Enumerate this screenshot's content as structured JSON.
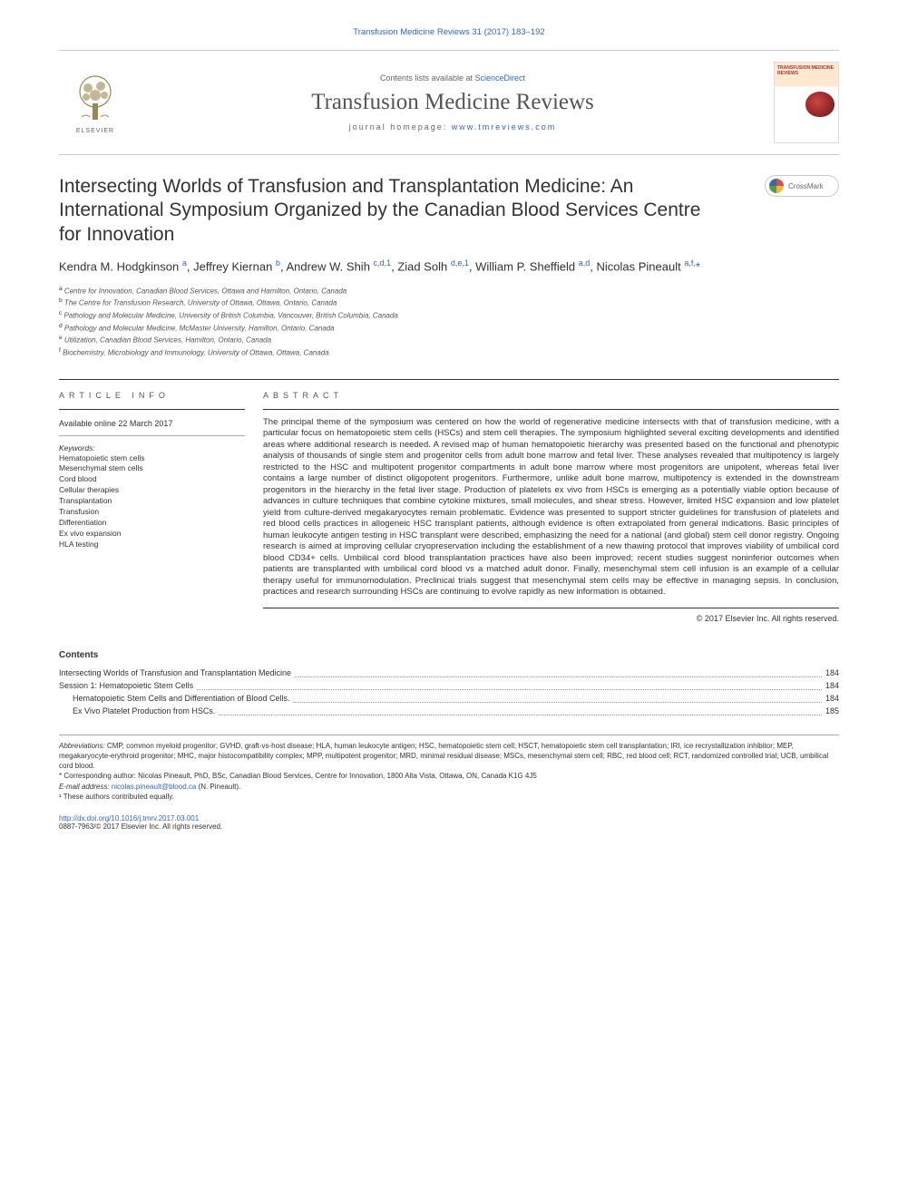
{
  "header": {
    "citation": "Transfusion Medicine Reviews 31 (2017) 183–192",
    "sciencedirect_line_prefix": "Contents lists available at ",
    "sciencedirect_link": "ScienceDirect",
    "journal_name": "Transfusion Medicine Reviews",
    "homepage_prefix": "journal homepage: ",
    "homepage_url": "www.tmreviews.com",
    "publisher_name": "ELSEVIER",
    "cover_label": "TRANSFUSION MEDICINE REVIEWS"
  },
  "crossmark": {
    "label": "CrossMark"
  },
  "article": {
    "title": "Intersecting Worlds of Transfusion and Transplantation Medicine: An International Symposium Organized by the Canadian Blood Services Centre for Innovation",
    "authors_html": "Kendra M. Hodgkinson <sup>a</sup>, Jeffrey Kiernan <sup>b</sup>, Andrew W. Shih <sup>c,d,1</sup>, Ziad Solh <sup>d,e,1</sup>, William P. Sheffield <sup>a,d</sup>, Nicolas Pineault <sup>a,f,</sup><span class='asterisk'>*</span>",
    "affiliations": [
      {
        "sup": "a",
        "text": "Centre for Innovation, Canadian Blood Services, Ottawa and Hamilton, Ontario, Canada"
      },
      {
        "sup": "b",
        "text": "The Centre for Transfusion Research, University of Ottawa, Ottawa, Ontario, Canada"
      },
      {
        "sup": "c",
        "text": "Pathology and Molecular Medicine, University of British Columbia, Vancouver, British Columbia, Canada"
      },
      {
        "sup": "d",
        "text": "Pathology and Molecular Medicine, McMaster University, Hamilton, Ontario, Canada"
      },
      {
        "sup": "e",
        "text": "Utilization, Canadian Blood Services, Hamilton, Ontario, Canada"
      },
      {
        "sup": "f",
        "text": "Biochemistry, Microbiology and Immunology, University of Ottawa, Ottawa, Canada"
      }
    ]
  },
  "article_info": {
    "heading": "article info",
    "online_date": "Available online 22 March 2017",
    "keywords_label": "Keywords:",
    "keywords": [
      "Hematopoietic stem cells",
      "Mesenchymal stem cells",
      "Cord blood",
      "Cellular therapies",
      "Transplantation",
      "Transfusion",
      "Differentiation",
      "Ex vivo expansion",
      "HLA testing"
    ]
  },
  "abstract": {
    "heading": "abstract",
    "text": "The principal theme of the symposium was centered on how the world of regenerative medicine intersects with that of transfusion medicine, with a particular focus on hematopoietic stem cells (HSCs) and stem cell therapies. The symposium highlighted several exciting developments and identified areas where additional research is needed. A revised map of human hematopoietic hierarchy was presented based on the functional and phenotypic analysis of thousands of single stem and progenitor cells from adult bone marrow and fetal liver. These analyses revealed that multipotency is largely restricted to the HSC and multipotent progenitor compartments in adult bone marrow where most progenitors are unipotent, whereas fetal liver contains a large number of distinct oligopotent progenitors. Furthermore, unlike adult bone marrow, multipotency is extended in the downstream progenitors in the hierarchy in the fetal liver stage. Production of platelets ex vivo from HSCs is emerging as a potentially viable option because of advances in culture techniques that combine cytokine mixtures, small molecules, and shear stress. However, limited HSC expansion and low platelet yield from culture-derived megakaryocytes remain problematic. Evidence was presented to support stricter guidelines for transfusion of platelets and red blood cells practices in allogeneic HSC transplant patients, although evidence is often extrapolated from general indications. Basic principles of human leukocyte antigen testing in HSC transplant were described, emphasizing the need for a national (and global) stem cell donor registry. Ongoing research is aimed at improving cellular cryopreservation including the establishment of a new thawing protocol that improves viability of umbilical cord blood CD34+ cells. Umbilical cord blood transplantation practices have also been improved; recent studies suggest noninferior outcomes when patients are transplanted with umbilical cord blood vs a matched adult donor. Finally, mesenchymal stem cell infusion is an example of a cellular therapy useful for immunomodulation. Preclinical trials suggest that mesenchymal stem cells may be effective in managing sepsis. In conclusion, practices and research surrounding HSCs are continuing to evolve rapidly as new information is obtained.",
    "copyright": "© 2017 Elsevier Inc. All rights reserved."
  },
  "contents": {
    "heading": "Contents",
    "items": [
      {
        "label": "Intersecting Worlds of Transfusion and Transplantation Medicine",
        "page": "184",
        "indent": 0
      },
      {
        "label": "Session 1: Hematopoietic Stem Cells",
        "page": "184",
        "indent": 0
      },
      {
        "label": "Hematopoietic Stem Cells and Differentiation of Blood Cells.",
        "page": "184",
        "indent": 1
      },
      {
        "label": "Ex Vivo Platelet Production from HSCs.",
        "page": "185",
        "indent": 1
      }
    ]
  },
  "footnotes": {
    "abbrev_label": "Abbreviations:",
    "abbrev_text": " CMP, common myeloid progenitor; GVHD, graft-vs-host disease; HLA, human leukocyte antigen; HSC, hematopoietic stem cell; HSCT, hematopoietic stem cell transplantation; IRI, ice recrystallization inhibitor; MEP, megakaryocyte-erythroid progenitor; MHC, major histocompatibility complex; MPP, multipotent progenitor; MRD, minimal residual disease; MSCs, mesenchymal stem cell; RBC, red blood cell; RCT, randomized controlled trial; UCB, umbilical cord blood.",
    "corresponding": "* Corresponding author: Nicolas Pineault, PhD, BSc, Canadian Blood Services, Centre for Innovation, 1800 Alta Vista, Ottawa, ON, Canada K1G 4J5",
    "email_label": "E-mail address: ",
    "email": "nicolas.pineault@blood.ca",
    "email_name": " (N. Pineault).",
    "equal": "¹ These authors contributed equally."
  },
  "bottom": {
    "doi": "http://dx.doi.org/10.1016/j.tmrv.2017.03.001",
    "issn_line": "0887-7963/© 2017 Elsevier Inc. All rights reserved."
  },
  "colors": {
    "link": "#3366cc",
    "text": "#333333",
    "border": "#cccccc",
    "tree": "#888866"
  }
}
